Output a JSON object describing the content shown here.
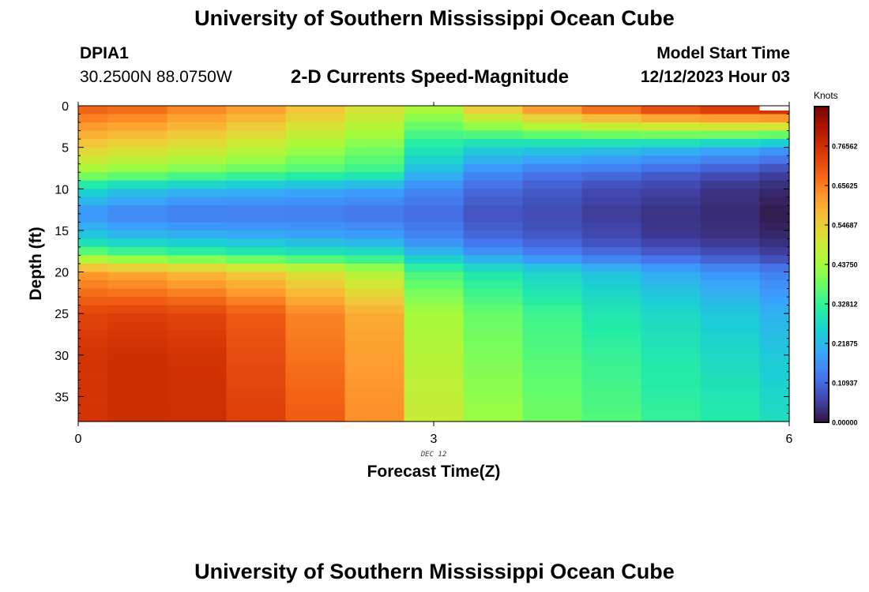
{
  "header": {
    "title": "University of Southern Mississippi Ocean Cube",
    "station_id": "DPIA1",
    "station_coords": "30.2500N  88.0750W",
    "chart_title": "2-D Currents Speed-Magnitude",
    "model_start_label": "Model Start Time",
    "model_start_value": "12/12/2023 Hour 03"
  },
  "footer": {
    "next_title": "University of Southern Mississippi Ocean Cube"
  },
  "chart_data": {
    "type": "heatmap",
    "title": "2-D Currents Speed-Magnitude",
    "xlabel": "Forecast Time(Z)",
    "ylabel": "Depth (ft)",
    "xlim": [
      0,
      6
    ],
    "ylim": [
      38,
      0
    ],
    "x_ticks": [
      0,
      3,
      6
    ],
    "x_date_label": "DEC 12",
    "y_ticks": [
      0,
      5,
      10,
      15,
      20,
      25,
      30,
      35
    ],
    "colorbar": {
      "title": "Knots",
      "ticks": [
        "0.00000",
        "0.10937",
        "0.21875",
        "0.32812",
        "0.43750",
        "0.54687",
        "0.65625",
        "0.76562"
      ],
      "range": [
        0,
        0.875
      ],
      "colors": [
        "#30123b",
        "#4145ab",
        "#4675ed",
        "#39a2fc",
        "#1bcfd4",
        "#24eca6",
        "#61fc6c",
        "#a4fc3b",
        "#d1e834",
        "#f3c63a",
        "#fe9b2d",
        "#f36315",
        "#d93806",
        "#b11901",
        "#7a0403"
      ]
    },
    "time_columns": [
      0,
      0.5,
      1,
      1.5,
      2,
      2.5,
      3,
      3.5,
      4,
      4.5,
      5,
      5.5,
      6
    ],
    "depth_profiles_ft": [
      0,
      5,
      8,
      10,
      13,
      16,
      18,
      20,
      25,
      30,
      38
    ],
    "speed_knots": [
      [
        0.7,
        0.55,
        0.43,
        0.27,
        0.16,
        0.25,
        0.4,
        0.62,
        0.73,
        0.76,
        0.76
      ],
      [
        0.69,
        0.53,
        0.41,
        0.24,
        0.14,
        0.23,
        0.37,
        0.6,
        0.74,
        0.77,
        0.77
      ],
      [
        0.66,
        0.51,
        0.39,
        0.22,
        0.13,
        0.22,
        0.35,
        0.58,
        0.73,
        0.76,
        0.77
      ],
      [
        0.63,
        0.48,
        0.37,
        0.21,
        0.13,
        0.21,
        0.33,
        0.55,
        0.7,
        0.72,
        0.74
      ],
      [
        0.58,
        0.44,
        0.35,
        0.2,
        0.13,
        0.2,
        0.31,
        0.51,
        0.65,
        0.67,
        0.7
      ],
      [
        0.52,
        0.4,
        0.33,
        0.19,
        0.12,
        0.19,
        0.3,
        0.46,
        0.6,
        0.62,
        0.64
      ],
      [
        0.46,
        0.3,
        0.22,
        0.15,
        0.11,
        0.15,
        0.23,
        0.35,
        0.44,
        0.46,
        0.49
      ],
      [
        0.58,
        0.26,
        0.16,
        0.11,
        0.08,
        0.11,
        0.18,
        0.3,
        0.38,
        0.4,
        0.43
      ],
      [
        0.66,
        0.25,
        0.13,
        0.09,
        0.07,
        0.09,
        0.15,
        0.26,
        0.34,
        0.36,
        0.39
      ],
      [
        0.72,
        0.24,
        0.12,
        0.07,
        0.05,
        0.07,
        0.12,
        0.23,
        0.3,
        0.33,
        0.36
      ],
      [
        0.77,
        0.23,
        0.1,
        0.06,
        0.04,
        0.05,
        0.1,
        0.2,
        0.27,
        0.3,
        0.33
      ],
      [
        0.8,
        0.21,
        0.08,
        0.04,
        0.03,
        0.04,
        0.08,
        0.17,
        0.24,
        0.27,
        0.31
      ],
      [
        0.82,
        0.19,
        0.06,
        0.03,
        0.01,
        0.03,
        0.06,
        0.14,
        0.21,
        0.24,
        0.28
      ]
    ]
  }
}
